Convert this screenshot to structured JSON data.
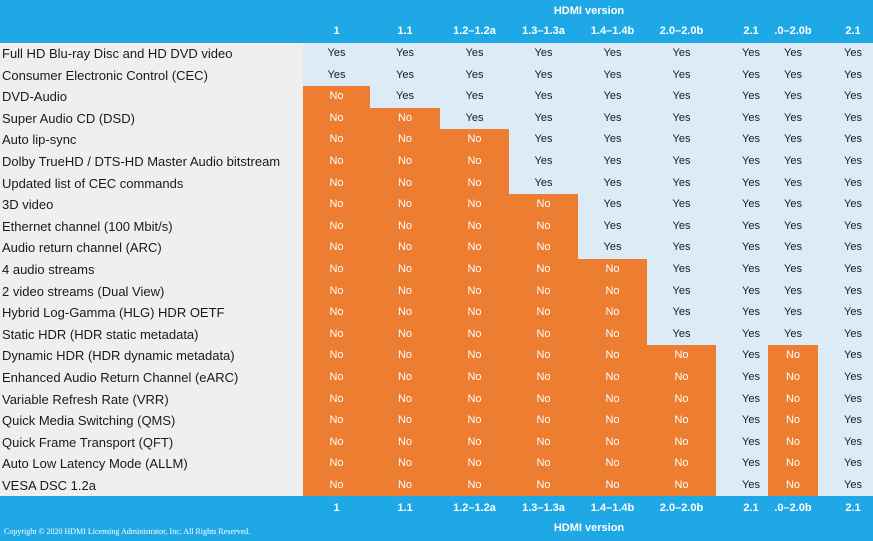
{
  "header": {
    "title": "HDMI version"
  },
  "footer": {
    "title": "HDMI version",
    "copyright": "Copyright © 2020 HDMI Licensing Administrator, Inc.  All Rights Reserved."
  },
  "columns": [
    "1",
    "1.1",
    "1.2–1.2a",
    "1.3–1.3a",
    "1.4–1.4b",
    "2.0–2.0b",
    "2.1",
    ".0–2.0b",
    "2.1"
  ],
  "colors": {
    "header_blue": "#1ea8e6",
    "yes_bg": "#ddebf6",
    "no_bg": "#ed7d31",
    "feature_bg": "#efefef"
  },
  "rows": [
    {
      "feature": "Full HD Blu-ray Disc and HD DVD video",
      "values": [
        "Yes",
        "Yes",
        "Yes",
        "Yes",
        "Yes",
        "Yes",
        "Yes",
        "Yes",
        "Yes"
      ]
    },
    {
      "feature": "Consumer Electronic Control (CEC)",
      "values": [
        "Yes",
        "Yes",
        "Yes",
        "Yes",
        "Yes",
        "Yes",
        "Yes",
        "Yes",
        "Yes"
      ]
    },
    {
      "feature": "DVD-Audio",
      "values": [
        "No",
        "Yes",
        "Yes",
        "Yes",
        "Yes",
        "Yes",
        "Yes",
        "Yes",
        "Yes"
      ]
    },
    {
      "feature": "Super Audio CD (DSD)",
      "values": [
        "No",
        "No",
        "Yes",
        "Yes",
        "Yes",
        "Yes",
        "Yes",
        "Yes",
        "Yes"
      ]
    },
    {
      "feature": "Auto lip-sync",
      "values": [
        "No",
        "No",
        "No",
        "Yes",
        "Yes",
        "Yes",
        "Yes",
        "Yes",
        "Yes"
      ]
    },
    {
      "feature": "Dolby TrueHD / DTS-HD Master Audio bitstream",
      "values": [
        "No",
        "No",
        "No",
        "Yes",
        "Yes",
        "Yes",
        "Yes",
        "Yes",
        "Yes"
      ]
    },
    {
      "feature": "Updated list of CEC commands",
      "values": [
        "No",
        "No",
        "No",
        "Yes",
        "Yes",
        "Yes",
        "Yes",
        "Yes",
        "Yes"
      ]
    },
    {
      "feature": "3D video",
      "values": [
        "No",
        "No",
        "No",
        "No",
        "Yes",
        "Yes",
        "Yes",
        "Yes",
        "Yes"
      ]
    },
    {
      "feature": "Ethernet channel (100 Mbit/s)",
      "values": [
        "No",
        "No",
        "No",
        "No",
        "Yes",
        "Yes",
        "Yes",
        "Yes",
        "Yes"
      ]
    },
    {
      "feature": "Audio return channel (ARC)",
      "values": [
        "No",
        "No",
        "No",
        "No",
        "Yes",
        "Yes",
        "Yes",
        "Yes",
        "Yes"
      ]
    },
    {
      "feature": "4 audio streams",
      "values": [
        "No",
        "No",
        "No",
        "No",
        "No",
        "Yes",
        "Yes",
        "Yes",
        "Yes"
      ]
    },
    {
      "feature": "2 video streams (Dual View)",
      "values": [
        "No",
        "No",
        "No",
        "No",
        "No",
        "Yes",
        "Yes",
        "Yes",
        "Yes"
      ]
    },
    {
      "feature": "Hybrid Log-Gamma (HLG) HDR OETF",
      "values": [
        "No",
        "No",
        "No",
        "No",
        "No",
        "Yes",
        "Yes",
        "Yes",
        "Yes"
      ]
    },
    {
      "feature": "Static HDR (HDR static metadata)",
      "values": [
        "No",
        "No",
        "No",
        "No",
        "No",
        "Yes",
        "Yes",
        "Yes",
        "Yes"
      ]
    },
    {
      "feature": "Dynamic HDR (HDR dynamic metadata)",
      "values": [
        "No",
        "No",
        "No",
        "No",
        "No",
        "No",
        "Yes",
        "No",
        "Yes"
      ]
    },
    {
      "feature": "Enhanced Audio Return Channel (eARC)",
      "values": [
        "No",
        "No",
        "No",
        "No",
        "No",
        "No",
        "Yes",
        "No",
        "Yes"
      ]
    },
    {
      "feature": "Variable Refresh Rate (VRR)",
      "values": [
        "No",
        "No",
        "No",
        "No",
        "No",
        "No",
        "Yes",
        "No",
        "Yes"
      ]
    },
    {
      "feature": "Quick Media Switching (QMS)",
      "values": [
        "No",
        "No",
        "No",
        "No",
        "No",
        "No",
        "Yes",
        "No",
        "Yes"
      ]
    },
    {
      "feature": "Quick Frame Transport (QFT)",
      "values": [
        "No",
        "No",
        "No",
        "No",
        "No",
        "No",
        "Yes",
        "No",
        "Yes"
      ]
    },
    {
      "feature": "Auto Low Latency Mode (ALLM)",
      "values": [
        "No",
        "No",
        "No",
        "No",
        "No",
        "No",
        "Yes",
        "No",
        "Yes"
      ]
    },
    {
      "feature": "VESA DSC 1.2a",
      "values": [
        "No",
        "No",
        "No",
        "No",
        "No",
        "No",
        "Yes",
        "No",
        "Yes"
      ]
    }
  ]
}
